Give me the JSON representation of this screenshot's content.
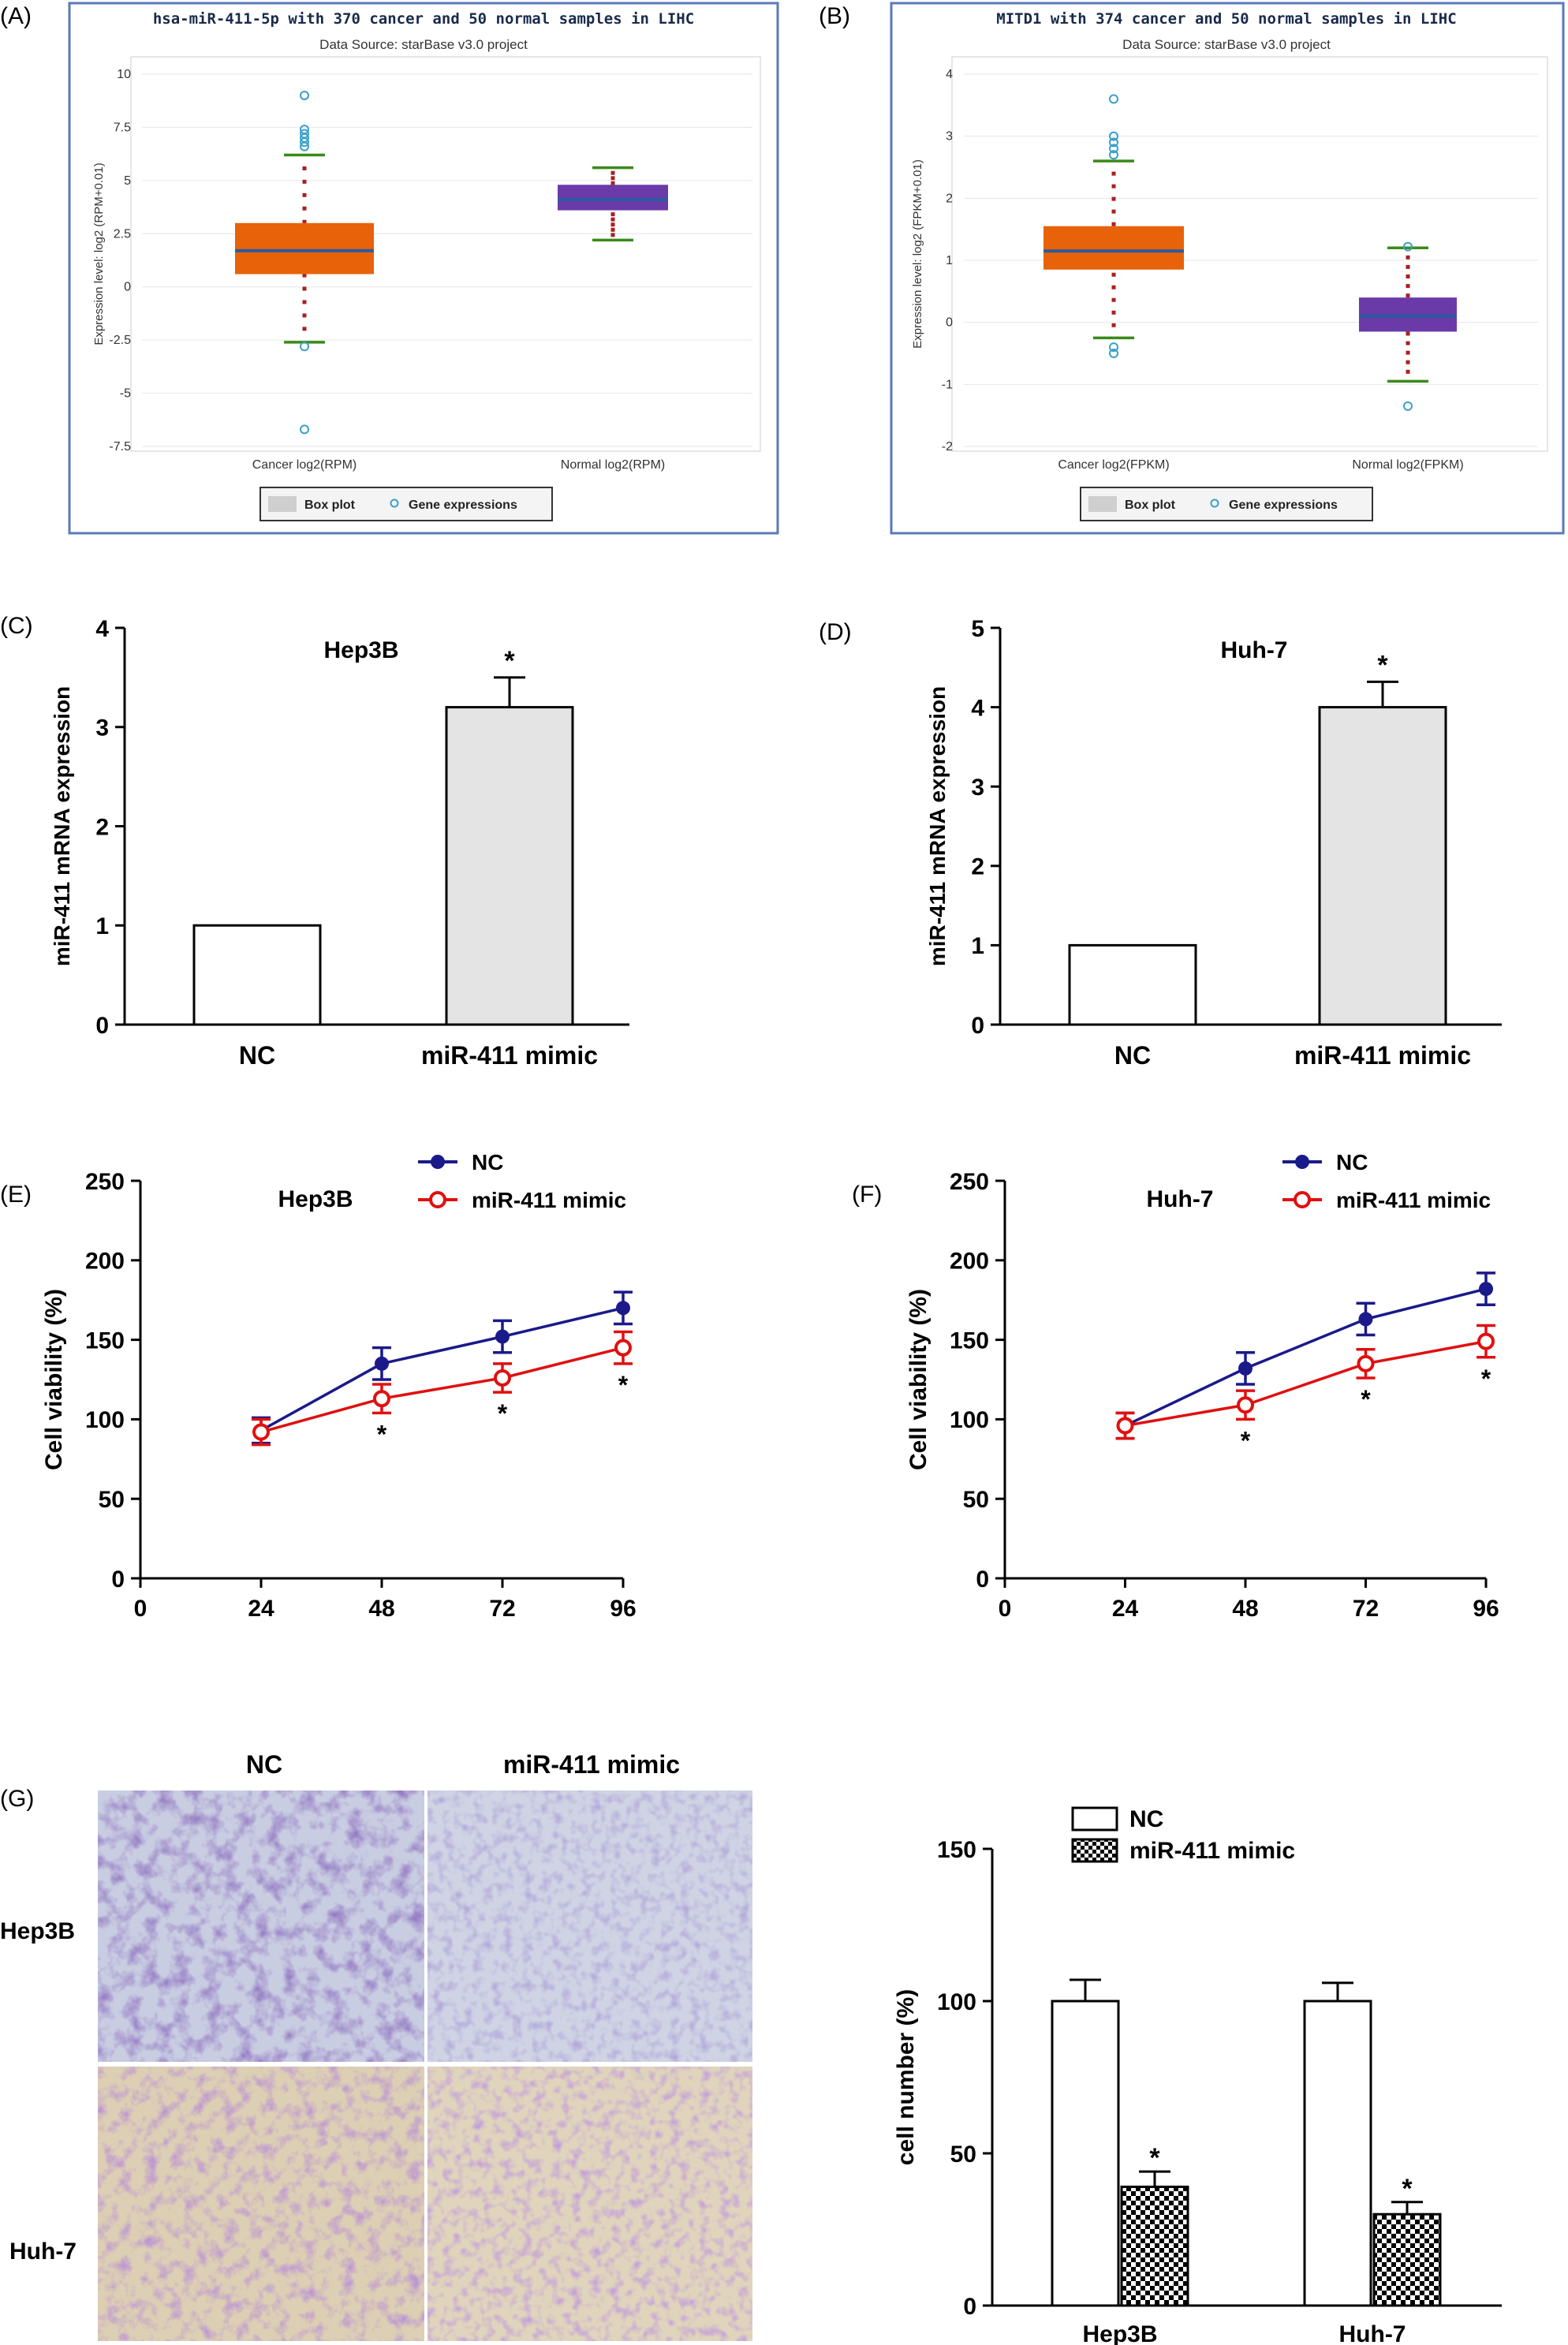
{
  "panels": {
    "A": "(A)",
    "B": "(B)",
    "C": "(C)",
    "D": "(D)",
    "E": "(E)",
    "F": "(F)",
    "G": "(G)"
  },
  "colors": {
    "box_orange": "#e8620a",
    "box_purple": "#6a3aa8",
    "median_blue": "#2a5aa0",
    "whisker_green": "#3a8a1a",
    "dot_red": "#a82020",
    "outlier_cyan": "#3aa0c8",
    "frame_blue": "#5a7ab8",
    "nc_blue": "#1a1a8a",
    "mimic_red": "#e01010",
    "bar_gray": "#e4e4e4"
  },
  "chart_data": [
    {
      "id": "A",
      "type": "box",
      "title": "hsa-miR-411-5p with 370 cancer and 50 normal samples in LIHC",
      "subtitle": "Data Source: starBase v3.0 project",
      "ylabel": "Expression level: log2 (RPM+0.01)",
      "ylim": [
        -7.5,
        10
      ],
      "yticks": [
        "10",
        "7.5",
        "5",
        "2.5",
        "0",
        "-2.5",
        "-5",
        "-7.5"
      ],
      "ytick_values": [
        10,
        7.5,
        5,
        2.5,
        0,
        -2.5,
        -5,
        -7.5
      ],
      "categories": [
        "Cancer log2(RPM)",
        "Normal log2(RPM)"
      ],
      "boxes": [
        {
          "q1": 0.6,
          "median": 1.7,
          "q3": 3.0,
          "low": -2.6,
          "high": 6.2,
          "color": "orange",
          "outliers": [
            9.0,
            7.4,
            7.2,
            7.0,
            6.8,
            6.6,
            -2.8,
            -6.7
          ]
        },
        {
          "q1": 3.6,
          "median": 4.1,
          "q3": 4.8,
          "low": 2.2,
          "high": 5.6,
          "color": "purple",
          "outliers": []
        }
      ],
      "legend": [
        "Box plot",
        "Gene expressions"
      ]
    },
    {
      "id": "B",
      "type": "box",
      "title": "MITD1 with 374 cancer and 50 normal samples in LIHC",
      "subtitle": "Data Source: starBase v3.0 project",
      "ylabel": "Expression level: log2 (FPKM+0.01)",
      "ylim": [
        -2,
        4
      ],
      "yticks": [
        "4",
        "3",
        "2",
        "1",
        "0",
        "-1",
        "-2"
      ],
      "ytick_values": [
        4,
        3,
        2,
        1,
        0,
        -1,
        -2
      ],
      "categories": [
        "Cancer log2(FPKM)",
        "Normal log2(FPKM)"
      ],
      "boxes": [
        {
          "q1": 0.85,
          "median": 1.15,
          "q3": 1.55,
          "low": -0.25,
          "high": 2.6,
          "color": "orange",
          "outliers": [
            3.6,
            3.0,
            2.9,
            2.8,
            2.7,
            -0.4,
            -0.5
          ]
        },
        {
          "q1": -0.15,
          "median": 0.1,
          "q3": 0.4,
          "low": -0.95,
          "high": 1.2,
          "color": "purple",
          "outliers": [
            1.22,
            -1.35
          ]
        }
      ],
      "legend": [
        "Box plot",
        "Gene expressions"
      ]
    },
    {
      "id": "C",
      "type": "bar",
      "title": "Hep3B",
      "ylabel": "miR-411 mRNA expression",
      "ylim": [
        0,
        4
      ],
      "yticks": [
        0,
        1,
        2,
        3,
        4
      ],
      "categories": [
        "NC",
        "miR-411 mimic"
      ],
      "values": [
        1.0,
        3.2
      ],
      "errors": [
        0,
        0.3
      ],
      "annotations": [
        "",
        "*"
      ]
    },
    {
      "id": "D",
      "type": "bar",
      "title": "Huh-7",
      "ylabel": "miR-411 mRNA expression",
      "ylim": [
        0,
        5
      ],
      "yticks": [
        0,
        1,
        2,
        3,
        4,
        5
      ],
      "categories": [
        "NC",
        "miR-411 mimic"
      ],
      "values": [
        1.0,
        4.0
      ],
      "errors": [
        0,
        0.32
      ],
      "annotations": [
        "",
        "*"
      ]
    },
    {
      "id": "E",
      "type": "line",
      "title": "Hep3B",
      "ylabel": "Cell viability (%)",
      "xlim": [
        0,
        96
      ],
      "ylim": [
        0,
        250
      ],
      "xticks": [
        0,
        24,
        48,
        72,
        96
      ],
      "yticks": [
        0,
        50,
        100,
        150,
        200,
        250
      ],
      "x": [
        24,
        48,
        72,
        96
      ],
      "series": [
        {
          "name": "NC",
          "values": [
            93,
            135,
            152,
            170
          ],
          "errors": [
            8,
            10,
            10,
            10
          ]
        },
        {
          "name": "miR-411 mimic",
          "values": [
            92,
            113,
            126,
            145
          ],
          "errors": [
            8,
            9,
            9,
            10
          ]
        }
      ],
      "annotations": [
        "",
        "*",
        "*",
        "*"
      ]
    },
    {
      "id": "F",
      "type": "line",
      "title": "Huh-7",
      "ylabel": "Cell viability (%)",
      "xlim": [
        0,
        96
      ],
      "ylim": [
        0,
        250
      ],
      "xticks": [
        0,
        24,
        48,
        72,
        96
      ],
      "yticks": [
        0,
        50,
        100,
        150,
        200,
        250
      ],
      "x": [
        24,
        48,
        72,
        96
      ],
      "series": [
        {
          "name": "NC",
          "values": [
            96,
            132,
            163,
            182
          ],
          "errors": [
            8,
            10,
            10,
            10
          ]
        },
        {
          "name": "miR-411 mimic",
          "values": [
            96,
            109,
            135,
            149
          ],
          "errors": [
            8,
            9,
            9,
            10
          ]
        }
      ],
      "annotations": [
        "",
        "*",
        "*",
        "*"
      ]
    },
    {
      "id": "G",
      "type": "bar",
      "ylabel": "cell number (%)",
      "ylim": [
        0,
        150
      ],
      "yticks": [
        0,
        50,
        100,
        150
      ],
      "categories": [
        "Hep3B",
        "Huh-7"
      ],
      "series": [
        {
          "name": "NC",
          "values": [
            100,
            100
          ],
          "errors": [
            7,
            6
          ]
        },
        {
          "name": "miR-411 mimic",
          "values": [
            39,
            30
          ],
          "errors": [
            5,
            4
          ]
        }
      ],
      "annotations": [
        "*",
        "*"
      ]
    }
  ],
  "micrographs": {
    "col_labels": [
      "NC",
      "miR-411 mimic"
    ],
    "row_labels": [
      "Hep3B",
      "Huh-7"
    ]
  }
}
